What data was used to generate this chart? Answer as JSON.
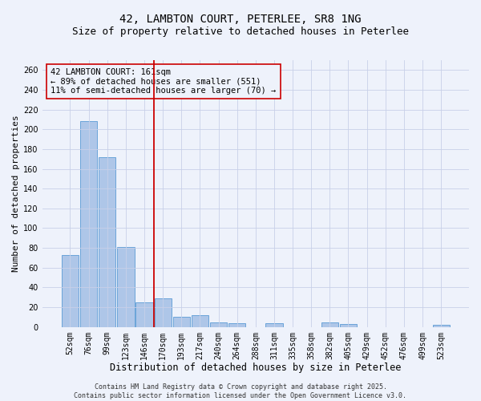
{
  "title1": "42, LAMBTON COURT, PETERLEE, SR8 1NG",
  "title2": "Size of property relative to detached houses in Peterlee",
  "xlabel": "Distribution of detached houses by size in Peterlee",
  "ylabel": "Number of detached properties",
  "categories": [
    "52sqm",
    "76sqm",
    "99sqm",
    "123sqm",
    "146sqm",
    "170sqm",
    "193sqm",
    "217sqm",
    "240sqm",
    "264sqm",
    "288sqm",
    "311sqm",
    "335sqm",
    "358sqm",
    "382sqm",
    "405sqm",
    "429sqm",
    "452sqm",
    "476sqm",
    "499sqm",
    "523sqm"
  ],
  "values": [
    73,
    208,
    172,
    81,
    25,
    29,
    10,
    12,
    5,
    4,
    0,
    4,
    0,
    0,
    5,
    3,
    0,
    0,
    0,
    0,
    2
  ],
  "bar_color": "#aec6e8",
  "bar_edge_color": "#5b9bd5",
  "vline_x": 4.5,
  "vline_color": "#cc0000",
  "annotation_line1": "42 LAMBTON COURT: 161sqm",
  "annotation_line2": "← 89% of detached houses are smaller (551)",
  "annotation_line3": "11% of semi-detached houses are larger (70) →",
  "ylim": [
    0,
    270
  ],
  "yticks": [
    0,
    20,
    40,
    60,
    80,
    100,
    120,
    140,
    160,
    180,
    200,
    220,
    240,
    260
  ],
  "bg_color": "#eef2fb",
  "grid_color": "#c8d0e8",
  "footnote": "Contains HM Land Registry data © Crown copyright and database right 2025.\nContains public sector information licensed under the Open Government Licence v3.0.",
  "title1_fontsize": 10,
  "title2_fontsize": 9,
  "xlabel_fontsize": 8.5,
  "ylabel_fontsize": 8,
  "tick_fontsize": 7,
  "annotation_fontsize": 7.5,
  "footnote_fontsize": 6
}
